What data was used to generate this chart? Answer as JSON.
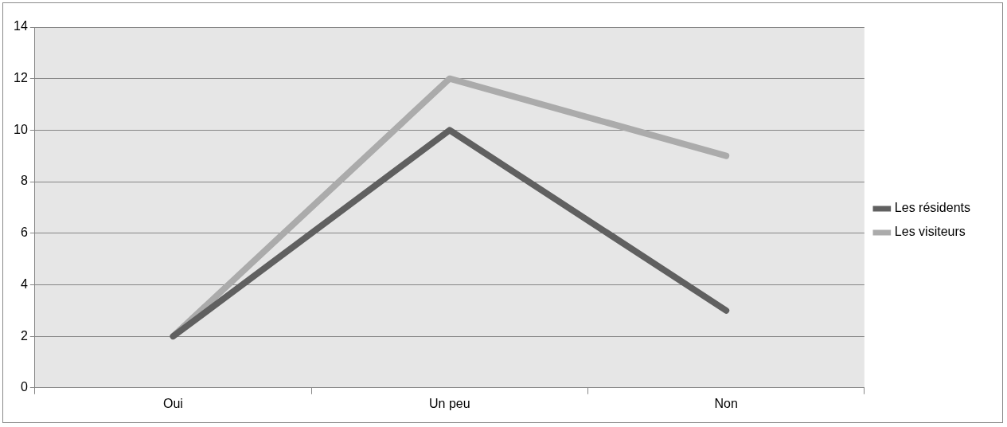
{
  "chart_data": {
    "type": "line",
    "categories": [
      "Oui",
      "Un peu",
      "Non"
    ],
    "series": [
      {
        "name": "Les résidents",
        "color": "#606060",
        "values": [
          2,
          10,
          3
        ]
      },
      {
        "name": "Les visiteurs",
        "color": "#ababab",
        "values": [
          2,
          12,
          9
        ]
      }
    ],
    "ylim": [
      0,
      14
    ],
    "yticks": [
      0,
      2,
      4,
      6,
      8,
      10,
      12,
      14
    ],
    "grid": "y",
    "legend": "right",
    "marker": "none"
  }
}
